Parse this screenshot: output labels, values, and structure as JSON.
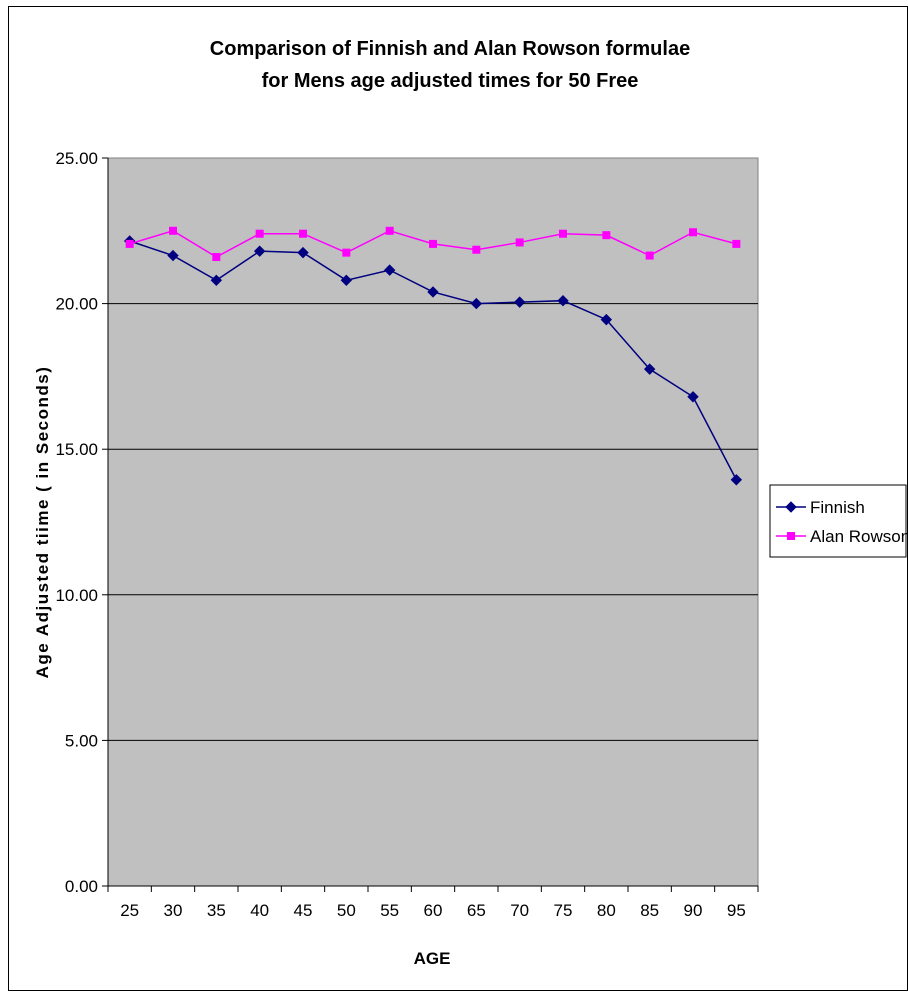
{
  "chart_data": {
    "type": "line",
    "title": "Comparison  of Finnish and Alan Rowson formulae",
    "subtitle": "for Mens age adjusted times for 50 Free",
    "xlabel": "AGE",
    "ylabel": "Age Adjusted tiime ( in Seconds)",
    "categories": [
      "25",
      "30",
      "35",
      "40",
      "45",
      "50",
      "55",
      "60",
      "65",
      "70",
      "75",
      "80",
      "85",
      "90",
      "95"
    ],
    "ylim": [
      0,
      25
    ],
    "yticks": [
      "0.00",
      "5.00",
      "10.00",
      "15.00",
      "20.00",
      "25.00"
    ],
    "grid": true,
    "legend_position": "right",
    "plot_background": "#c0c0c0",
    "series": [
      {
        "name": "Finnish",
        "color": "#000080",
        "marker": "diamond",
        "values": [
          22.15,
          21.65,
          20.8,
          21.8,
          21.75,
          20.8,
          21.15,
          20.4,
          20.0,
          20.05,
          20.1,
          19.45,
          17.75,
          16.8,
          13.95
        ]
      },
      {
        "name": "Alan Rowson",
        "color": "#ff00ff",
        "marker": "square",
        "values": [
          22.05,
          22.5,
          21.6,
          22.4,
          22.4,
          21.75,
          22.5,
          22.05,
          21.85,
          22.1,
          22.4,
          22.35,
          21.65,
          22.45,
          22.05
        ]
      }
    ]
  }
}
